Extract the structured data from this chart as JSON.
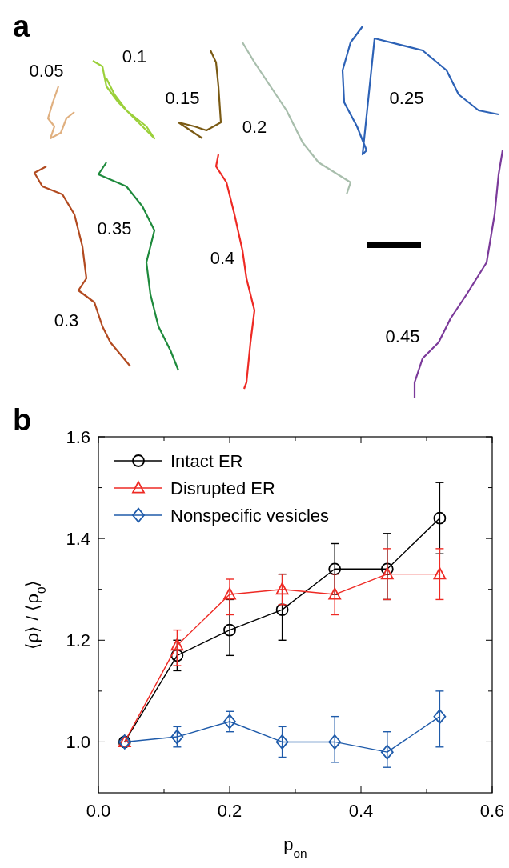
{
  "chart_data": [
    {
      "type": "other",
      "title": "a",
      "annotations": [
        "0.05",
        "0.1",
        "0.15",
        "0.2",
        "0.25",
        "0.3",
        "0.35",
        "0.4",
        "0.45"
      ]
    },
    {
      "type": "line",
      "title": "b",
      "xlabel": "p$_{on}$",
      "ylabel": "⟨ρ⟩ / ⟨ρ$_{0}$⟩",
      "x": [
        0.04,
        0.12,
        0.2,
        0.28,
        0.36,
        0.44,
        0.52
      ],
      "xlim": [
        0,
        0.6
      ],
      "xticks": [
        {
          "value": 0,
          "label": "0.0"
        },
        {
          "value": 0.1,
          "label": null
        },
        0.2,
        {
          "value": 0.3,
          "label": null
        },
        0.4,
        {
          "value": 0.5,
          "label": null
        },
        0.6
      ],
      "ylim": [
        0.9,
        1.6
      ],
      "yticks": [
        {
          "value": 1,
          "label": "1.0"
        },
        {
          "value": 1.1,
          "label": null
        },
        1.2,
        {
          "value": 1.3,
          "label": null
        },
        1.4,
        {
          "value": 1.5,
          "label": null
        },
        1.6
      ],
      "grid": false,
      "legend": "top left",
      "line_style": "solid",
      "series": [
        {
          "name": "Intact ER",
          "color": "#000000",
          "marker": "circle",
          "values": [
            1.0,
            1.17,
            1.22,
            1.26,
            1.34,
            1.34,
            1.44
          ],
          "errors": [
            null,
            [
              1.14,
              1.2
            ],
            [
              1.17,
              1.28
            ],
            [
              1.2,
              1.33
            ],
            [
              1.29,
              1.39
            ],
            [
              1.28,
              1.41
            ],
            [
              1.37,
              1.51
            ]
          ]
        },
        {
          "name": "Disrupted ER",
          "color": "#ee2a24",
          "marker": "triangle",
          "values": [
            1.0,
            1.19,
            1.29,
            1.3,
            1.29,
            1.33,
            1.33
          ],
          "errors": [
            null,
            [
              1.15,
              1.22
            ],
            [
              1.25,
              1.32
            ],
            [
              1.27,
              1.33
            ],
            [
              1.25,
              1.33
            ],
            [
              1.28,
              1.38
            ],
            [
              1.28,
              1.38
            ]
          ]
        },
        {
          "name": "Nonspecific vesicles",
          "color": "#1f5baa",
          "marker": "diamond",
          "values": [
            1.0,
            1.01,
            1.04,
            1.0,
            1.0,
            0.98,
            1.05
          ],
          "errors": [
            null,
            [
              0.99,
              1.03
            ],
            [
              1.02,
              1.06
            ],
            [
              0.97,
              1.03
            ],
            [
              0.96,
              1.05
            ],
            [
              0.95,
              1.02
            ],
            [
              0.99,
              1.1
            ]
          ]
        }
      ]
    }
  ]
}
